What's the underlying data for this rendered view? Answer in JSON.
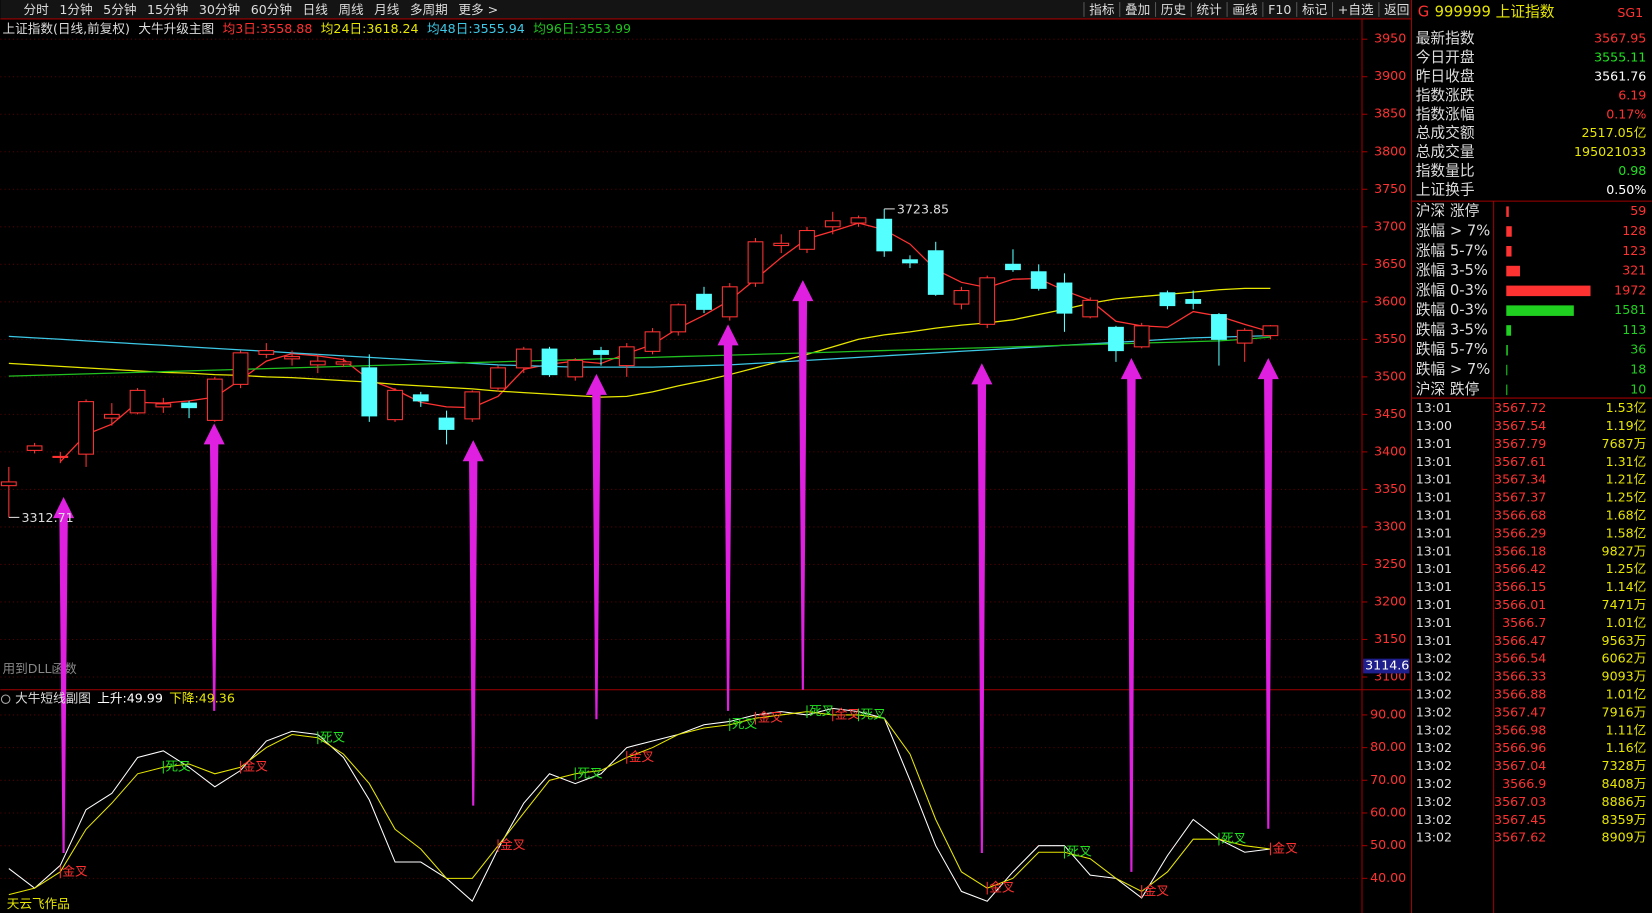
{
  "toolbar": {
    "left": [
      {
        "label": "分时"
      },
      {
        "label": "1分钟"
      },
      {
        "label": "5分钟"
      },
      {
        "label": "15分钟"
      },
      {
        "label": "30分钟"
      },
      {
        "label": "60分钟"
      },
      {
        "label": "日线",
        "active": true
      },
      {
        "label": "周线"
      },
      {
        "label": "月线"
      },
      {
        "label": "多周期"
      },
      {
        "label": "更多 >"
      }
    ],
    "right": [
      {
        "label": "指标"
      },
      {
        "label": "叠加"
      },
      {
        "label": "历史"
      },
      {
        "label": "统计"
      },
      {
        "label": "画线"
      },
      {
        "label": "F10"
      },
      {
        "label": "标记"
      },
      {
        "label": "+自选"
      },
      {
        "label": "返回"
      }
    ]
  },
  "chart_data": [
    {
      "type": "candlestick",
      "title": "上证指数(日线,前复权)",
      "indicator": "大牛升级主图",
      "note": "用到DLL函数",
      "cursor_price": 3114.6,
      "up_color": "#ff3232",
      "down_color": "#54ffff",
      "grid": true,
      "ylim": [
        3083,
        3977
      ],
      "yticks": [
        3100,
        3150,
        3200,
        3250,
        3300,
        3350,
        3400,
        3450,
        3500,
        3550,
        3600,
        3650,
        3700,
        3750,
        3800,
        3850,
        3900,
        3950
      ],
      "open": [
        3355,
        3402,
        3393,
        3397,
        3445,
        3452,
        3460,
        3465,
        3442,
        3490,
        3530,
        3524,
        3516,
        3517,
        3512,
        3443,
        3476,
        3445,
        3444,
        3485,
        3512,
        3537,
        3500,
        3535,
        3515,
        3534,
        3560,
        3610,
        3580,
        3625,
        3675,
        3670,
        3700,
        3705,
        3710,
        3656,
        3668,
        3597,
        3570,
        3650,
        3640,
        3625,
        3580,
        3566,
        3540,
        3612,
        3603,
        3583,
        3545,
        3555
      ],
      "close": [
        3360,
        3408,
        3394,
        3467,
        3450,
        3482,
        3464,
        3459,
        3497,
        3532,
        3535,
        3527,
        3521,
        3520,
        3448,
        3482,
        3468,
        3430,
        3480,
        3512,
        3537,
        3503,
        3522,
        3530,
        3540,
        3560,
        3596,
        3590,
        3620,
        3680,
        3678,
        3695,
        3708,
        3712,
        3668,
        3652,
        3610,
        3615,
        3632,
        3643,
        3618,
        3585,
        3602,
        3535,
        3568,
        3595,
        3598,
        3550,
        3562,
        3568
      ],
      "high": [
        3380,
        3412,
        3400,
        3470,
        3465,
        3485,
        3472,
        3468,
        3500,
        3535,
        3545,
        3535,
        3530,
        3525,
        3530,
        3485,
        3480,
        3455,
        3482,
        3515,
        3540,
        3540,
        3525,
        3540,
        3545,
        3565,
        3598,
        3620,
        3625,
        3685,
        3690,
        3700,
        3720,
        3715,
        3723.85,
        3662,
        3680,
        3620,
        3635,
        3670,
        3650,
        3638,
        3606,
        3568,
        3572,
        3615,
        3615,
        3585,
        3565,
        3569
      ],
      "low": [
        3312.71,
        3398,
        3385,
        3380,
        3435,
        3450,
        3452,
        3445,
        3440,
        3485,
        3525,
        3515,
        3505,
        3513,
        3440,
        3440,
        3460,
        3410,
        3440,
        3480,
        3505,
        3500,
        3495,
        3515,
        3500,
        3530,
        3555,
        3585,
        3575,
        3620,
        3665,
        3665,
        3690,
        3700,
        3660,
        3645,
        3608,
        3590,
        3565,
        3640,
        3615,
        3560,
        3578,
        3520,
        3538,
        3590,
        3590,
        3515,
        3520,
        3550
      ],
      "series": [
        {
          "name": "均3日:",
          "current": 3558.88,
          "color": "#ff3232",
          "values": [
            null,
            null,
            3387,
            3423,
            3437,
            3466,
            3465,
            3468,
            3473,
            3496,
            3521,
            3531,
            3528,
            3523,
            3496,
            3483,
            3466,
            3460,
            3459,
            3474,
            3510,
            3517,
            3521,
            3518,
            3531,
            3543,
            3565,
            3582,
            3602,
            3630,
            3659,
            3684,
            3694,
            3705,
            3696,
            3677,
            3643,
            3626,
            3619,
            3630,
            3631,
            3615,
            3602,
            3574,
            3568,
            3566,
            3587,
            3581,
            3570,
            3560
          ]
        },
        {
          "name": "均24日:",
          "current": 3618.24,
          "color": "#e6e600",
          "values": [
            3518,
            3516,
            3514,
            3512,
            3510,
            3508,
            3506,
            3505,
            3503,
            3502,
            3500,
            3499,
            3497,
            3495,
            3493,
            3490,
            3488,
            3486,
            3484,
            3481,
            3479,
            3477,
            3475,
            3473,
            3474,
            3480,
            3488,
            3495,
            3503,
            3512,
            3521,
            3530,
            3540,
            3550,
            3556,
            3560,
            3565,
            3569,
            3572,
            3576,
            3583,
            3590,
            3598,
            3604,
            3607,
            3610,
            3613,
            3616,
            3618,
            3618
          ]
        },
        {
          "name": "均48日:",
          "current": 3555.94,
          "color": "#3cc8e6",
          "values": [
            3554,
            3552,
            3550,
            3548,
            3546,
            3544,
            3542,
            3540,
            3538,
            3536,
            3534,
            3532,
            3530,
            3528,
            3526,
            3524,
            3522,
            3520,
            3518,
            3516,
            3515,
            3514,
            3513,
            3513,
            3513,
            3513,
            3514,
            3515,
            3516,
            3518,
            3520,
            3522,
            3524,
            3526,
            3528,
            3530,
            3532,
            3534,
            3536,
            3538,
            3540,
            3542,
            3544,
            3546,
            3548,
            3550,
            3552,
            3553,
            3554,
            3555
          ]
        },
        {
          "name": "均96日:",
          "current": 3553.99,
          "color": "#20c020",
          "values": [
            3501,
            3502,
            3503,
            3504,
            3505,
            3506,
            3507,
            3508,
            3509,
            3510,
            3511,
            3512,
            3513,
            3514,
            3515,
            3516,
            3517,
            3518,
            3519,
            3520,
            3521,
            3522,
            3523,
            3524,
            3525,
            3526,
            3527,
            3528,
            3529,
            3530,
            3531,
            3532,
            3533,
            3534,
            3535,
            3536,
            3537,
            3538,
            3539,
            3540,
            3541,
            3542,
            3543,
            3544,
            3545,
            3546,
            3547,
            3548,
            3550,
            3553
          ]
        }
      ]
    },
    {
      "type": "line",
      "title": "大牛短线副图",
      "author": "天云飞作品",
      "grid": true,
      "ylim": [
        29.4,
        97.7
      ],
      "yticks": [
        {
          "value": 40,
          "label": "40.00"
        },
        {
          "value": 50,
          "label": "50.00"
        },
        {
          "value": 60,
          "label": "60.00"
        },
        {
          "value": 70,
          "label": "70.00"
        },
        {
          "value": 80,
          "label": "80.00"
        },
        {
          "value": 90,
          "label": "90.00"
        }
      ],
      "series": [
        {
          "name": "上升:",
          "current": 49.99,
          "color": "#ffffff",
          "values": [
            43,
            37,
            44,
            61,
            66,
            77,
            79,
            74,
            68,
            73,
            82,
            85,
            84,
            77,
            64,
            45,
            45,
            40,
            33,
            49,
            63,
            72,
            69,
            72,
            80,
            82,
            84,
            87,
            88,
            90,
            91,
            90,
            92,
            91,
            89,
            70,
            50,
            36,
            33,
            42,
            50,
            50,
            41,
            40,
            34,
            47,
            58,
            52,
            48,
            49
          ]
        },
        {
          "name": "下降:",
          "current": 49.36,
          "color": "#e6e600",
          "values": [
            35,
            37,
            42,
            55,
            63,
            72,
            74,
            75,
            72,
            74,
            80,
            84,
            83,
            78,
            69,
            55,
            49,
            40,
            40,
            50,
            60,
            70,
            72,
            73,
            77,
            80,
            84,
            86,
            87,
            89,
            90,
            91,
            90,
            90,
            89,
            78,
            58,
            42,
            37,
            40,
            48,
            48,
            46,
            40,
            36,
            42,
            52,
            52,
            50,
            49
          ]
        }
      ],
      "cross_labels": [
        null,
        null,
        {
          "text": "金叉",
          "color": "#ff3030"
        },
        null,
        null,
        null,
        {
          "text": "死叉",
          "color": "#20e020"
        },
        null,
        null,
        {
          "text": "金叉",
          "color": "#ff3030"
        },
        null,
        null,
        {
          "text": "死叉",
          "color": "#20e020"
        },
        null,
        null,
        null,
        null,
        null,
        null,
        {
          "text": "金叉",
          "color": "#ff3030"
        },
        null,
        null,
        {
          "text": "死叉",
          "color": "#20e020"
        },
        null,
        {
          "text": "金叉",
          "color": "#ff3030"
        },
        null,
        null,
        null,
        {
          "text": "死叉",
          "color": "#20e020"
        },
        {
          "text": "金叉",
          "color": "#ff3030"
        },
        null,
        {
          "text": "死叉",
          "color": "#20e020"
        },
        {
          "text": "金叉",
          "color": "#ff3030"
        },
        {
          "text": "死叉",
          "color": "#20e020"
        },
        null,
        null,
        null,
        null,
        {
          "text": "金叉",
          "color": "#ff3030"
        },
        null,
        null,
        {
          "text": "死叉",
          "color": "#20e020"
        },
        null,
        null,
        {
          "text": "金叉",
          "color": "#ff3030"
        },
        null,
        null,
        {
          "text": "死叉",
          "color": "#20e020"
        },
        null,
        {
          "text": "金叉",
          "color": "#ff3030"
        }
      ]
    }
  ],
  "quote_panel": {
    "prefix": "G",
    "code": "999999 上证指数",
    "tag": "SG1",
    "rows": [
      {
        "label": "最新指数",
        "value": 3567.95,
        "color": "#ff3232"
      },
      {
        "label": "今日开盘",
        "value": 3555.11,
        "color": "#20e020"
      },
      {
        "label": "昨日收盘",
        "value": 3561.76,
        "color": "#ffffff"
      },
      {
        "label": "指数涨跌",
        "value": 6.19,
        "color": "#ff3232"
      },
      {
        "label": "指数涨幅",
        "value": "0.17%",
        "color": "#ff3232"
      },
      {
        "label": "总成交额",
        "value": "2517.05亿",
        "color": "#e6e600"
      },
      {
        "label": "总成交量",
        "value": 195021033,
        "color": "#e6e600"
      },
      {
        "label": "指数量比",
        "value": 0.98,
        "color": "#20e020"
      },
      {
        "label": "上证换手",
        "value": "0.50%",
        "color": "#ffffff"
      }
    ],
    "distribution": [
      {
        "label": "沪深 涨停",
        "count": 59,
        "color": "#ff3232"
      },
      {
        "label": "涨幅 > 7%",
        "count": 128,
        "color": "#ff3232"
      },
      {
        "label": "涨幅 5-7%",
        "count": 123,
        "color": "#ff3232"
      },
      {
        "label": "涨幅 3-5%",
        "count": 321,
        "color": "#ff3232"
      },
      {
        "label": "涨幅 0-3%",
        "count": 1972,
        "color": "#ff3232"
      },
      {
        "label": "跌幅 0-3%",
        "count": 1581,
        "color": "#20d020"
      },
      {
        "label": "跌幅 3-5%",
        "count": 113,
        "color": "#20d020"
      },
      {
        "label": "跌幅 5-7%",
        "count": 36,
        "color": "#20d020"
      },
      {
        "label": "跌幅 > 7%",
        "count": 18,
        "color": "#20d020"
      },
      {
        "label": "沪深 跌停",
        "count": 10,
        "color": "#20d020"
      }
    ],
    "ticks": [
      [
        "13:01",
        3567.72,
        "1.53亿"
      ],
      [
        "13:00",
        3567.54,
        "1.19亿"
      ],
      [
        "13:01",
        3567.79,
        "7687万"
      ],
      [
        "13:01",
        3567.61,
        "1.31亿"
      ],
      [
        "13:01",
        3567.34,
        "1.21亿"
      ],
      [
        "13:01",
        3567.37,
        "1.25亿"
      ],
      [
        "13:01",
        3566.68,
        "1.68亿"
      ],
      [
        "13:01",
        3566.29,
        "1.58亿"
      ],
      [
        "13:01",
        3566.18,
        "9827万"
      ],
      [
        "13:01",
        3566.42,
        "1.25亿"
      ],
      [
        "13:01",
        3566.15,
        "1.14亿"
      ],
      [
        "13:01",
        3566.01,
        "7471万"
      ],
      [
        "13:01",
        3566.7,
        "1.01亿"
      ],
      [
        "13:01",
        3566.47,
        "9563万"
      ],
      [
        "13:02",
        3566.54,
        "6062万"
      ],
      [
        "13:02",
        3566.33,
        "9093万"
      ],
      [
        "13:02",
        3566.88,
        "1.01亿"
      ],
      [
        "13:02",
        3567.47,
        "7916万"
      ],
      [
        "13:02",
        3566.98,
        "1.11亿"
      ],
      [
        "13:02",
        3566.96,
        "1.16亿"
      ],
      [
        "13:02",
        3567.04,
        "7328万"
      ],
      [
        "13:02",
        3566.9,
        "8408万"
      ],
      [
        "13:02",
        3567.03,
        "8886万"
      ],
      [
        "13:02",
        3567.45,
        "8359万"
      ],
      [
        "13:02",
        3567.62,
        "8909万"
      ]
    ]
  }
}
